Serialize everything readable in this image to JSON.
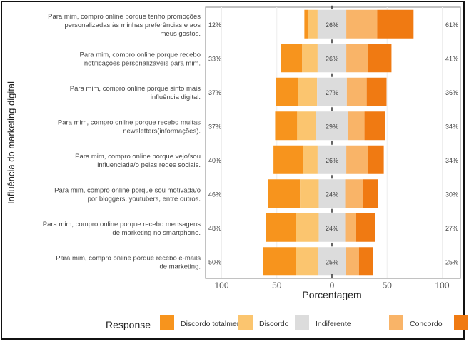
{
  "chart_data": {
    "type": "bar",
    "subtype": "diverging-stacked-horizontal",
    "title": "",
    "xlabel": "Porcentagem",
    "ylabel": "Influência do marketing digital",
    "xlim": [
      -100,
      100
    ],
    "xticks": [
      "100",
      "50",
      "0",
      "50",
      "100"
    ],
    "xtick_values": [
      -100,
      -50,
      0,
      50,
      100
    ],
    "grid": true,
    "legend_title": "Response",
    "legend_position": "bottom",
    "categories": [
      "Para mim, compro online porque tenho promoções personalizadas às minhas preferências e aos meus gostos.",
      "Para mim, compro online porque recebo notificações personalizáveis para mim.",
      "Para mim, compro online porque sinto mais influência digital.",
      "Para mim, compro online porque recebo muitas newsletters(informações).",
      "Para mim, compro online porque vejo/sou influenciada/o pelas redes sociais.",
      "Para mim, compro online porque sou motivada/o por bloggers, youtubers, entre outros.",
      "Para mim, compro online porque recebo mensagens de marketing no smartphone.",
      "Para mim, compro online porque recebo e-mails de marketing."
    ],
    "category_lines": [
      [
        "Para mim, compro online porque tenho promoções",
        "personalizadas às minhas preferências e aos",
        "meus gostos."
      ],
      [
        "Para mim, compro online porque recebo",
        "notificações personalizáveis para mim."
      ],
      [
        "Para mim, compro online porque sinto mais",
        "influência digital."
      ],
      [
        "Para mim, compro online porque recebo muitas",
        "newsletters(informações)."
      ],
      [
        "Para mim, compro online porque vejo/sou",
        "influenciada/o pelas redes sociais."
      ],
      [
        "Para mim, compro online porque sou motivada/o",
        "por bloggers, youtubers, entre outros."
      ],
      [
        "Para mim, compro online porque recebo mensagens",
        "de marketing no smartphone."
      ],
      [
        "Para mim, compro online porque recebo e-mails",
        "de marketing."
      ]
    ],
    "series": [
      {
        "name": "Discordo totalmente",
        "color": "#F7941D",
        "values": [
          3,
          19,
          20,
          20,
          27,
          29,
          27,
          30
        ]
      },
      {
        "name": "Discordo",
        "color": "#FBC56F",
        "values": [
          9,
          14,
          17,
          17,
          13,
          17,
          21,
          20
        ]
      },
      {
        "name": "Indiferente",
        "color": "#DCDCDC",
        "values": [
          26,
          26,
          27,
          29,
          26,
          24,
          24,
          25
        ]
      },
      {
        "name": "Concordo",
        "color": "#F9B468",
        "values": [
          28,
          20,
          18,
          15,
          20,
          16,
          10,
          12
        ]
      },
      {
        "name": "",
        "color": "#F07A12",
        "values": [
          33,
          21,
          18,
          19,
          14,
          14,
          17,
          13
        ]
      }
    ],
    "left_labels": [
      "12%",
      "33%",
      "37%",
      "37%",
      "40%",
      "46%",
      "48%",
      "50%"
    ],
    "center_labels": [
      "26%",
      "26%",
      "27%",
      "29%",
      "26%",
      "24%",
      "24%",
      "25%"
    ],
    "right_labels": [
      "61%",
      "41%",
      "36%",
      "34%",
      "34%",
      "30%",
      "27%",
      "25%"
    ]
  }
}
